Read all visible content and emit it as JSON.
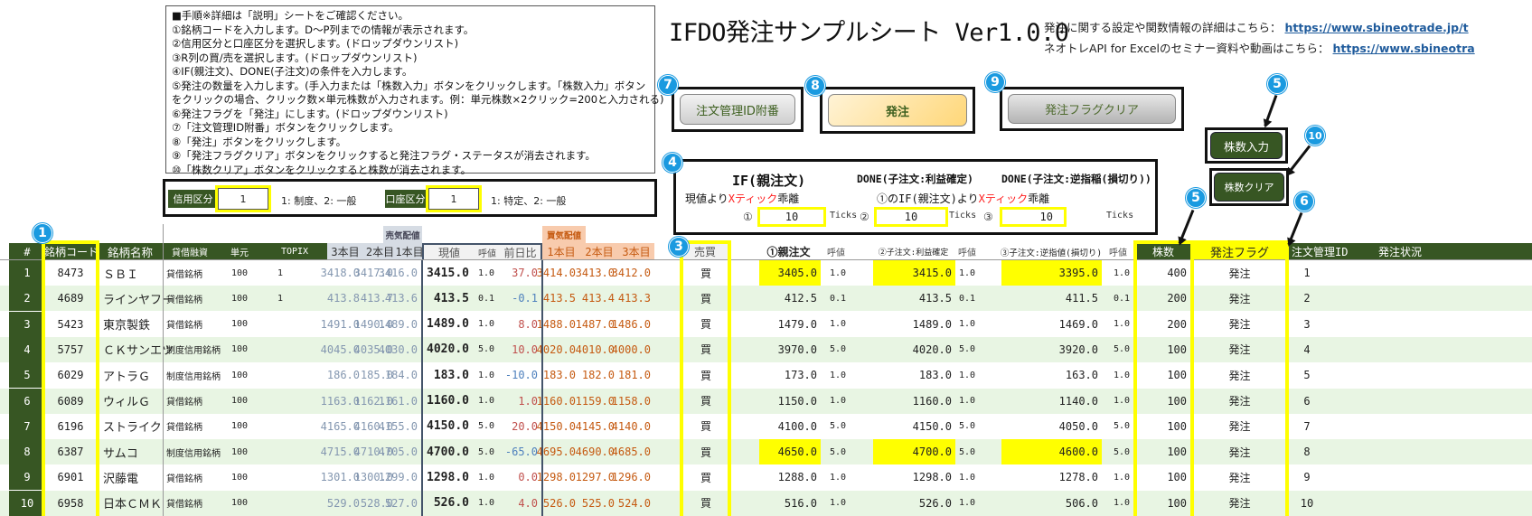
{
  "instructions": {
    "lines": [
      "■手順※詳細は「説明」シートをご確認ください。",
      "①銘柄コードを入力します。D～P列までの情報が表示されます。",
      "②信用区分と口座区分を選択します。(ドロップダウンリスト)",
      "③R列の買/売を選択します。(ドロップダウンリスト)",
      "④IF(親注文)、DONE(子注文)の条件を入力します。",
      "⑤発注の数量を入力します。(手入力または「株数入力」ボタンをクリックします。「株数入力」ボタン",
      "をクリックの場合、クリック数×単元株数が入力されます。例：単元株数×2クリック=200と入力される)",
      "⑥発注フラグを「発注」にします。(ドロップダウンリスト)",
      "⑦「注文管理ID附番」ボタンをクリックします。",
      "⑧「発注」ボタンをクリックします。",
      "⑨「発注フラグクリア」ボタンをクリックすると発注フラグ・ステータスが消去されます。",
      "⑩「株数クリア」ボタンをクリックすると株数が消去されます。"
    ]
  },
  "header": {
    "title": "IFDO発注サンプルシート Ver1.0.0",
    "info1_label": "発注に関する設定や関数情報の詳細はこちら：",
    "info1_link": "https://www.sbineotrade.jp/t",
    "info2_label": "ネオトレAPI for Excelのセミナー資料や動画はこちら：",
    "info2_link": "https://www.sbineotra"
  },
  "buttons": {
    "assign_id": "注文管理ID附番",
    "order": "発注",
    "clear_flag": "発注フラグクリア",
    "qty_input": "株数入力",
    "qty_clear": "株数クリア"
  },
  "badges": [
    "1",
    "3",
    "4",
    "5",
    "5",
    "6",
    "7",
    "8",
    "9",
    "10"
  ],
  "settings": {
    "credit_label": "信用区分",
    "credit_value": "1",
    "credit_note": "1: 制度、2: 一般",
    "account_label": "口座区分",
    "account_value": "1",
    "account_note": "1: 特定、2: 一般"
  },
  "ifdone": {
    "if_title": "IF(親注文)",
    "done1_title": "DONE(子注文:利益確定)",
    "done2_title": "DONE(子注文:逆指稲(損切り))",
    "if_sub_prefix": "現値より",
    "if_sub_red": "Xティック",
    "if_sub_suffix": "乖離",
    "done_sub_prefix": "①のIF(親注文)より",
    "done_sub_red": "Xティック",
    "done_sub_suffix": "乖離",
    "tick1_label": "①",
    "tick1_value": "10",
    "tick2_label": "②",
    "tick2_value": "10",
    "tick3_label": "③",
    "tick3_value": "10",
    "ticks_unit": "Ticks"
  },
  "table": {
    "group_sell": "売気配値",
    "group_buy": "買気配値",
    "headers": {
      "num": "#",
      "code": "銘柄コード",
      "name": "銘柄名称",
      "lending": "貸借融資",
      "unit": "単元",
      "topix": "TOPIX",
      "s3": "3本目",
      "s2": "2本目",
      "s1": "1本目",
      "price": "現値",
      "tick": "呼値",
      "change": "前日比",
      "b1": "1本目",
      "b2": "2本目",
      "b3": "3本目",
      "side": "売買",
      "parent": "①親注文",
      "ptick": "呼値",
      "child1": "②子注文:利益確定",
      "c1tick": "呼値",
      "child2": "③子注文:逆指値(損切り)",
      "c2tick": "呼値",
      "qty": "株数",
      "flag": "発注フラグ",
      "order_id": "注文管理ID",
      "status": "発注状況"
    },
    "rows": [
      {
        "num": "1",
        "code": "8473",
        "name": "ＳＢＩ",
        "lending": "貸借銘柄",
        "unit": "100",
        "topix": "1",
        "s3": "3418.0",
        "s2": "3417.0",
        "s1": "3416.0",
        "price": "3415.0",
        "tick": "1.0",
        "change": "37.0",
        "b1": "3414.0",
        "b2": "3413.0",
        "b3": "3412.0",
        "side": "買",
        "parent": "3405.0",
        "ptick": "1.0",
        "child1": "3415.0",
        "c1tick": "1.0",
        "child2": "3395.0",
        "c2tick": "1.0",
        "qty": "400",
        "flag": "発注",
        "order_id": "1",
        "status": ""
      },
      {
        "num": "2",
        "code": "4689",
        "name": "ラインヤフー",
        "lending": "貸借銘柄",
        "unit": "100",
        "topix": "1",
        "s3": "413.8",
        "s2": "413.7",
        "s1": "413.6",
        "price": "413.5",
        "tick": "0.1",
        "change": "-0.1",
        "b1": "413.5",
        "b2": "413.4",
        "b3": "413.3",
        "side": "買",
        "parent": "412.5",
        "ptick": "0.1",
        "child1": "413.5",
        "c1tick": "0.1",
        "child2": "411.5",
        "c2tick": "0.1",
        "qty": "200",
        "flag": "発注",
        "order_id": "2",
        "status": ""
      },
      {
        "num": "3",
        "code": "5423",
        "name": "東京製鉄",
        "lending": "貸借銘柄",
        "unit": "100",
        "topix": "",
        "s3": "1491.0",
        "s2": "1490.0",
        "s1": "1489.0",
        "price": "1489.0",
        "tick": "1.0",
        "change": "8.0",
        "b1": "1488.0",
        "b2": "1487.0",
        "b3": "1486.0",
        "side": "買",
        "parent": "1479.0",
        "ptick": "1.0",
        "child1": "1489.0",
        "c1tick": "1.0",
        "child2": "1469.0",
        "c2tick": "1.0",
        "qty": "200",
        "flag": "発注",
        "order_id": "3",
        "status": ""
      },
      {
        "num": "4",
        "code": "5757",
        "name": "ＣＫサンエツ",
        "lending": "制度信用銘柄",
        "unit": "100",
        "topix": "",
        "s3": "4045.0",
        "s2": "4035.0",
        "s1": "4030.0",
        "price": "4020.0",
        "tick": "5.0",
        "change": "10.0",
        "b1": "4020.0",
        "b2": "4010.0",
        "b3": "4000.0",
        "side": "買",
        "parent": "3970.0",
        "ptick": "5.0",
        "child1": "4020.0",
        "c1tick": "5.0",
        "child2": "3920.0",
        "c2tick": "5.0",
        "qty": "100",
        "flag": "発注",
        "order_id": "4",
        "status": ""
      },
      {
        "num": "5",
        "code": "6029",
        "name": "アトラＧ",
        "lending": "制度信用銘柄",
        "unit": "100",
        "topix": "",
        "s3": "186.0",
        "s2": "185.0",
        "s1": "184.0",
        "price": "183.0",
        "tick": "1.0",
        "change": "-10.0",
        "b1": "183.0",
        "b2": "182.0",
        "b3": "181.0",
        "side": "買",
        "parent": "173.0",
        "ptick": "1.0",
        "child1": "183.0",
        "c1tick": "1.0",
        "child2": "163.0",
        "c2tick": "1.0",
        "qty": "100",
        "flag": "発注",
        "order_id": "5",
        "status": ""
      },
      {
        "num": "6",
        "code": "6089",
        "name": "ウィルＧ",
        "lending": "貸借銘柄",
        "unit": "100",
        "topix": "",
        "s3": "1163.0",
        "s2": "1162.0",
        "s1": "1161.0",
        "price": "1160.0",
        "tick": "1.0",
        "change": "1.0",
        "b1": "1160.0",
        "b2": "1159.0",
        "b3": "1158.0",
        "side": "買",
        "parent": "1150.0",
        "ptick": "1.0",
        "child1": "1160.0",
        "c1tick": "1.0",
        "child2": "1140.0",
        "c2tick": "1.0",
        "qty": "100",
        "flag": "発注",
        "order_id": "6",
        "status": ""
      },
      {
        "num": "7",
        "code": "6196",
        "name": "ストライク",
        "lending": "貸借銘柄",
        "unit": "100",
        "topix": "",
        "s3": "4165.0",
        "s2": "4160.0",
        "s1": "4155.0",
        "price": "4150.0",
        "tick": "5.0",
        "change": "20.0",
        "b1": "4150.0",
        "b2": "4145.0",
        "b3": "4140.0",
        "side": "買",
        "parent": "4100.0",
        "ptick": "5.0",
        "child1": "4150.0",
        "c1tick": "5.0",
        "child2": "4050.0",
        "c2tick": "5.0",
        "qty": "100",
        "flag": "発注",
        "order_id": "7",
        "status": ""
      },
      {
        "num": "8",
        "code": "6387",
        "name": "サムコ",
        "lending": "制度信用銘柄",
        "unit": "100",
        "topix": "",
        "s3": "4715.0",
        "s2": "4710.0",
        "s1": "4705.0",
        "price": "4700.0",
        "tick": "5.0",
        "change": "-65.0",
        "b1": "4695.0",
        "b2": "4690.0",
        "b3": "4685.0",
        "side": "買",
        "parent": "4650.0",
        "ptick": "5.0",
        "child1": "4700.0",
        "c1tick": "5.0",
        "child2": "4600.0",
        "c2tick": "5.0",
        "qty": "100",
        "flag": "発注",
        "order_id": "8",
        "status": ""
      },
      {
        "num": "9",
        "code": "6901",
        "name": "沢藤電",
        "lending": "貸借銘柄",
        "unit": "100",
        "topix": "",
        "s3": "1301.0",
        "s2": "1300.0",
        "s1": "1299.0",
        "price": "1298.0",
        "tick": "1.0",
        "change": "0.0",
        "b1": "1298.0",
        "b2": "1297.0",
        "b3": "1296.0",
        "side": "買",
        "parent": "1288.0",
        "ptick": "1.0",
        "child1": "1298.0",
        "c1tick": "1.0",
        "child2": "1278.0",
        "c2tick": "1.0",
        "qty": "100",
        "flag": "発注",
        "order_id": "9",
        "status": ""
      },
      {
        "num": "10",
        "code": "6958",
        "name": "日本ＣＭＫ",
        "lending": "貸借銘柄",
        "unit": "100",
        "topix": "",
        "s3": "529.0",
        "s2": "528.0",
        "s1": "527.0",
        "price": "526.0",
        "tick": "1.0",
        "change": "4.0",
        "b1": "526.0",
        "b2": "525.0",
        "b3": "524.0",
        "side": "買",
        "parent": "516.0",
        "ptick": "1.0",
        "child1": "526.0",
        "c1tick": "1.0",
        "child2": "506.0",
        "c2tick": "1.0",
        "qty": "100",
        "flag": "発注",
        "order_id": "10",
        "status": ""
      }
    ],
    "highlight_rows": [
      0,
      7
    ]
  },
  "colors": {
    "header_green": "#375623",
    "highlight_yellow": "#ffff00",
    "badge_blue": "#1a9ae0",
    "band_green": "#e8f5e3",
    "ask_orange": "#c55a11",
    "sell_quote_header": "#d6dce4",
    "buy_quote_header": "#f8cbad"
  }
}
